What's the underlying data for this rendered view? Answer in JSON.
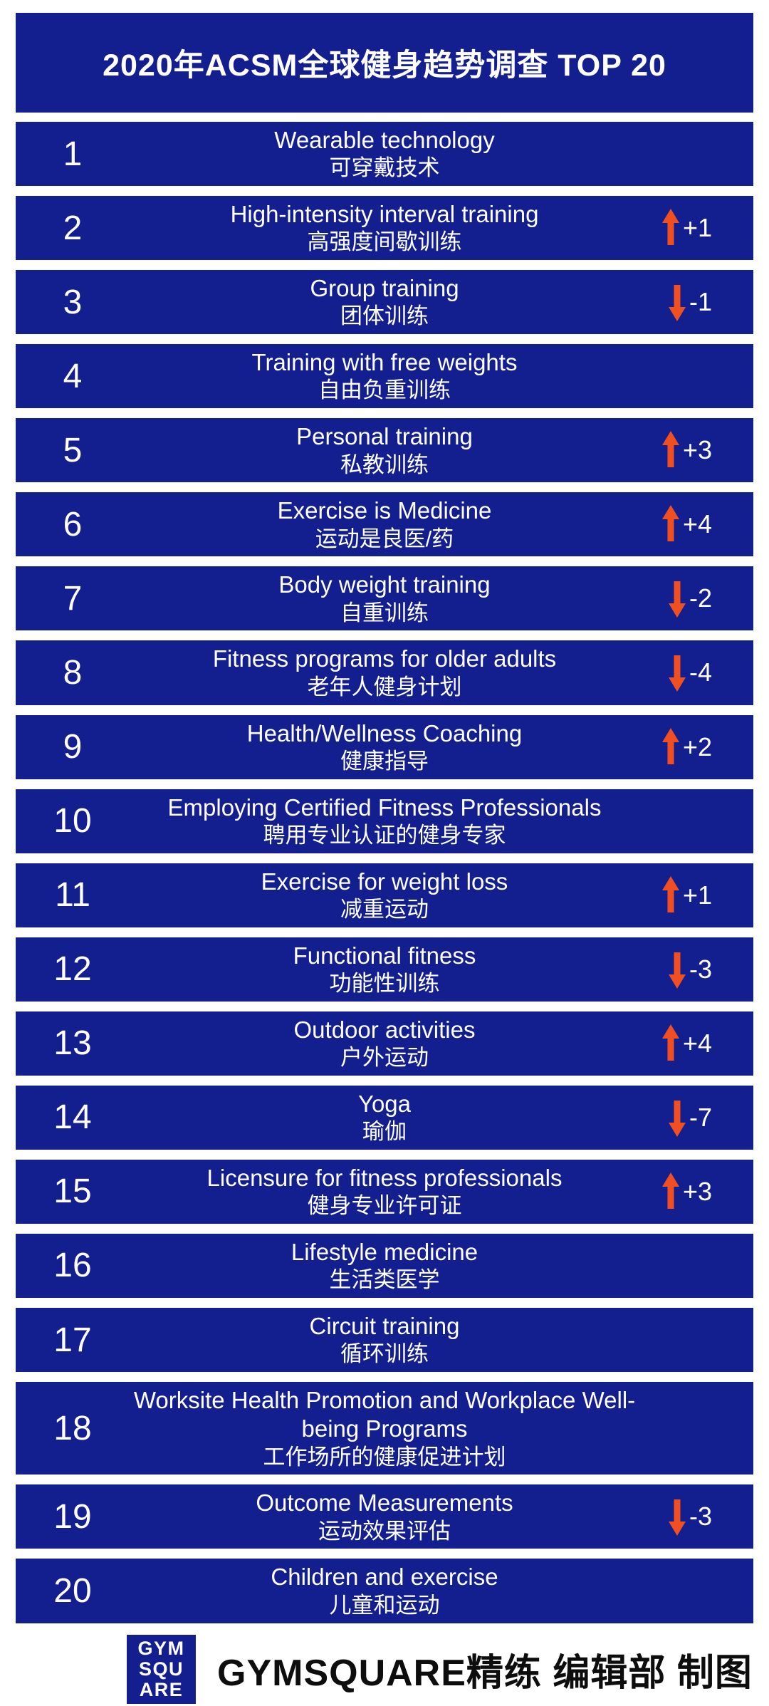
{
  "title": "2020年ACSM全球健身趋势调查 TOP 20",
  "rows": [
    {
      "rank": "1",
      "en": "Wearable technology",
      "zh": "可穿戴技术",
      "direction": "none",
      "delta": ""
    },
    {
      "rank": "2",
      "en": "High-intensity interval training",
      "zh": "高强度间歇训练",
      "direction": "up",
      "delta": "+1"
    },
    {
      "rank": "3",
      "en": "Group training",
      "zh": "团体训练",
      "direction": "down",
      "delta": "-1"
    },
    {
      "rank": "4",
      "en": "Training with free weights",
      "zh": "自由负重训练",
      "direction": "none",
      "delta": ""
    },
    {
      "rank": "5",
      "en": "Personal training",
      "zh": "私教训练",
      "direction": "up",
      "delta": "+3"
    },
    {
      "rank": "6",
      "en": "Exercise is Medicine",
      "zh": "运动是良医/药",
      "direction": "up",
      "delta": "+4"
    },
    {
      "rank": "7",
      "en": "Body weight training",
      "zh": "自重训练",
      "direction": "down",
      "delta": "-2"
    },
    {
      "rank": "8",
      "en": "Fitness programs for older adults",
      "zh": "老年人健身计划",
      "direction": "down",
      "delta": "-4"
    },
    {
      "rank": "9",
      "en": "Health/Wellness Coaching",
      "zh": "健康指导",
      "direction": "up",
      "delta": "+2"
    },
    {
      "rank": "10",
      "en": "Employing Certified Fitness Professionals",
      "zh": "聘用专业认证的健身专家",
      "direction": "none",
      "delta": ""
    },
    {
      "rank": "11",
      "en": "Exercise for weight loss",
      "zh": "减重运动",
      "direction": "up",
      "delta": "+1"
    },
    {
      "rank": "12",
      "en": "Functional fitness",
      "zh": "功能性训练",
      "direction": "down",
      "delta": "-3"
    },
    {
      "rank": "13",
      "en": "Outdoor activities",
      "zh": "户外运动",
      "direction": "up",
      "delta": "+4"
    },
    {
      "rank": "14",
      "en": "Yoga",
      "zh": "瑜伽",
      "direction": "down",
      "delta": "-7"
    },
    {
      "rank": "15",
      "en": "Licensure for fitness professionals",
      "zh": "健身专业许可证",
      "direction": "up",
      "delta": "+3"
    },
    {
      "rank": "16",
      "en": "Lifestyle medicine",
      "zh": "生活类医学",
      "direction": "none",
      "delta": ""
    },
    {
      "rank": "17",
      "en": "Circuit training",
      "zh": "循环训练",
      "direction": "none",
      "delta": ""
    },
    {
      "rank": "18",
      "en": "Worksite Health Promotion and Workplace Well-being Programs",
      "zh": "工作场所的健康促进计划",
      "direction": "none",
      "delta": ""
    },
    {
      "rank": "19",
      "en": "Outcome Measurements",
      "zh": "运动效果评估",
      "direction": "down",
      "delta": "-3"
    },
    {
      "rank": "20",
      "en": "Children and exercise",
      "zh": "儿童和运动",
      "direction": "none",
      "delta": ""
    }
  ],
  "footer": {
    "logo_lines": [
      "GYM",
      "SQU",
      "ARE"
    ],
    "credit": "GYMSQUARE精练 编辑部 制图"
  },
  "colors": {
    "panel_blue": "#131f8e",
    "arrow_orange": "#f04f22",
    "credit_black": "#0d0d0d",
    "background": "#ffffff"
  },
  "chart_data": {
    "type": "table",
    "title": "2020年ACSM全球健身趋势调查 TOP 20",
    "columns": [
      "rank",
      "trend_en",
      "trend_zh",
      "rank_change"
    ],
    "rows": [
      [
        1,
        "Wearable technology",
        "可穿戴技术",
        null
      ],
      [
        2,
        "High-intensity interval training",
        "高强度间歇训练",
        "+1"
      ],
      [
        3,
        "Group training",
        "团体训练",
        "-1"
      ],
      [
        4,
        "Training with free weights",
        "自由负重训练",
        null
      ],
      [
        5,
        "Personal training",
        "私教训练",
        "+3"
      ],
      [
        6,
        "Exercise is Medicine",
        "运动是良医/药",
        "+4"
      ],
      [
        7,
        "Body weight training",
        "自重训练",
        "-2"
      ],
      [
        8,
        "Fitness programs for older adults",
        "老年人健身计划",
        "-4"
      ],
      [
        9,
        "Health/Wellness Coaching",
        "健康指导",
        "+2"
      ],
      [
        10,
        "Employing Certified Fitness Professionals",
        "聘用专业认证的健身专家",
        null
      ],
      [
        11,
        "Exercise for weight loss",
        "减重运动",
        "+1"
      ],
      [
        12,
        "Functional fitness",
        "功能性训练",
        "-3"
      ],
      [
        13,
        "Outdoor activities",
        "户外运动",
        "+4"
      ],
      [
        14,
        "Yoga",
        "瑜伽",
        "-7"
      ],
      [
        15,
        "Licensure for fitness professionals",
        "健身专业许可证",
        "+3"
      ],
      [
        16,
        "Lifestyle medicine",
        "生活类医学",
        null
      ],
      [
        17,
        "Circuit training",
        "循环训练",
        null
      ],
      [
        18,
        "Worksite Health Promotion and Workplace Well-being Programs",
        "工作场所的健康促进计划",
        null
      ],
      [
        19,
        "Outcome Measurements",
        "运动效果评估",
        "-3"
      ],
      [
        20,
        "Children and exercise",
        "儿童和运动",
        null
      ]
    ]
  }
}
